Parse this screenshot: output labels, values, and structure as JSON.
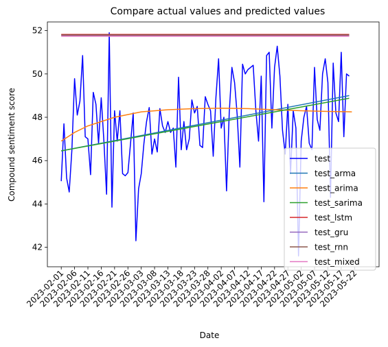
{
  "chart_data": {
    "type": "line",
    "title": "Compare actual values and predicted values",
    "xlabel": "Date",
    "ylabel": "Compound sentiment score",
    "x_start": "2023-02-01",
    "x_end": "2023-05-26",
    "xlim": [
      -5.2,
      119.2
    ],
    "ylim": [
      41.1,
      52.4
    ],
    "y_ticks": [
      42,
      44,
      46,
      48,
      50,
      52
    ],
    "x_tick_labels": [
      "2023-02-01",
      "2023-02-06",
      "2023-02-11",
      "2023-02-16",
      "2023-02-21",
      "2023-02-26",
      "2023-03-03",
      "2023-03-08",
      "2023-03-13",
      "2023-03-18",
      "2023-03-23",
      "2023-03-28",
      "2023-04-02",
      "2023-04-07",
      "2023-04-12",
      "2023-04-17",
      "2023-04-22",
      "2023-04-27",
      "2023-05-02",
      "2023-05-07",
      "2023-05-12",
      "2023-05-17",
      "2023-05-22"
    ],
    "legend_position": "lower-right",
    "series": [
      {
        "name": "test",
        "color": "#0000ff",
        "values": [
          45.05,
          47.7,
          45.2,
          44.55,
          46.5,
          49.78,
          48.1,
          48.75,
          50.85,
          47.1,
          47.0,
          45.35,
          49.15,
          48.6,
          46.8,
          48.9,
          46.9,
          44.45,
          51.9,
          43.85,
          48.3,
          46.9,
          48.3,
          45.4,
          45.3,
          45.45,
          46.8,
          48.2,
          42.3,
          44.7,
          45.4,
          46.8,
          47.8,
          48.45,
          46.3,
          47.0,
          46.4,
          48.4,
          47.6,
          47.3,
          47.8,
          47.3,
          47.5,
          45.7,
          49.85,
          46.5,
          47.8,
          46.5,
          47.0,
          48.8,
          48.2,
          48.5,
          46.7,
          46.6,
          48.95,
          48.6,
          48.3,
          46.2,
          48.9,
          50.7,
          47.5,
          48.0,
          44.6,
          48.2,
          50.3,
          49.6,
          48.1,
          45.7,
          50.45,
          50.0,
          50.2,
          50.3,
          50.4,
          48.3,
          46.9,
          49.9,
          44.1,
          50.85,
          51.0,
          47.5,
          50.3,
          51.28,
          49.9,
          47.4,
          46.3,
          48.6,
          45.4,
          48.3,
          47.5,
          41.6,
          46.9,
          48.0,
          48.5,
          46.8,
          46.5,
          50.3,
          47.9,
          47.4,
          50.0,
          50.7,
          49.6,
          44.3,
          50.5,
          48.2,
          47.8,
          51.0,
          47.1,
          50.0,
          49.9
        ]
      },
      {
        "name": "test_arma",
        "color": "#1f77b4",
        "values": {
          "kind": "linear",
          "start": 46.45,
          "end": 49.0
        }
      },
      {
        "name": "test_arima",
        "color": "#ff7f0e",
        "values": {
          "kind": "curve",
          "points": [
            [
              0,
              46.9
            ],
            [
              5,
              47.3
            ],
            [
              10,
              47.6
            ],
            [
              20,
              48.0
            ],
            [
              30,
              48.25
            ],
            [
              40,
              48.35
            ],
            [
              50,
              48.4
            ],
            [
              60,
              48.42
            ],
            [
              70,
              48.4
            ],
            [
              80,
              48.35
            ],
            [
              90,
              48.3
            ],
            [
              100,
              48.27
            ],
            [
              109,
              48.25
            ]
          ]
        }
      },
      {
        "name": "test_sarima",
        "color": "#2ca02c",
        "values": {
          "kind": "linear",
          "start": 46.45,
          "end": 48.88
        }
      },
      {
        "name": "test_lstm",
        "color": "#d62728",
        "values": {
          "kind": "constant",
          "value": 51.82
        }
      },
      {
        "name": "test_gru",
        "color": "#9467bd",
        "values": {
          "kind": "constant",
          "value": 51.78
        }
      },
      {
        "name": "test_rnn",
        "color": "#8c564b",
        "values": {
          "kind": "constant",
          "value": 51.8
        }
      },
      {
        "name": "test_mixed",
        "color": "#e377c2",
        "values": {
          "kind": "constant",
          "value": 51.74
        }
      }
    ]
  }
}
